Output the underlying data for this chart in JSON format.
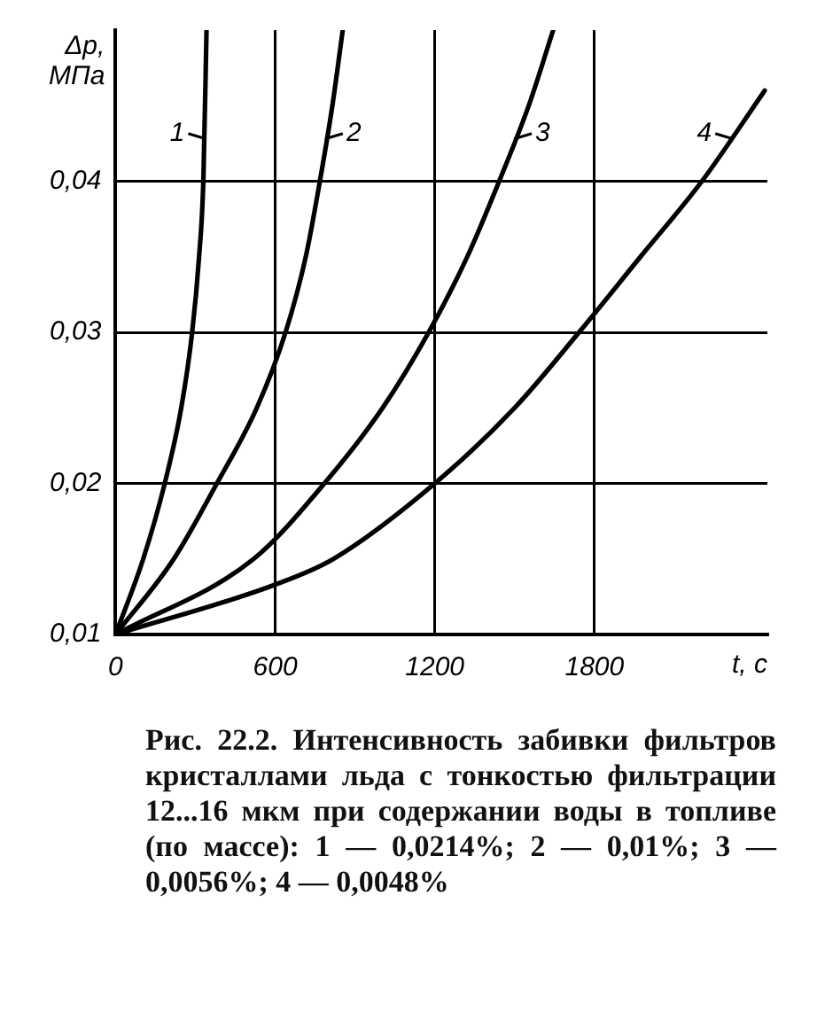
{
  "chart_data": {
    "type": "line",
    "xlabel": "t, c",
    "ylabel": "Δp, МПа",
    "xlim": [
      0,
      2450
    ],
    "xticks": [
      0,
      600,
      1200,
      1800
    ],
    "ylim": [
      0.01,
      0.05
    ],
    "yticks": [
      {
        "value": 0.01,
        "label": "0,01"
      },
      {
        "value": 0.02,
        "label": "0,02"
      },
      {
        "value": 0.03,
        "label": "0,03"
      },
      {
        "value": 0.04,
        "label": "0,04"
      }
    ],
    "grid": true,
    "legend": "top",
    "marker": "none",
    "line_style": "solid",
    "series": [
      {
        "name": "1",
        "color": "#000000",
        "x": [
          0,
          104,
          185,
          247,
          288,
          314,
          330,
          342
        ],
        "values": [
          0.01,
          0.015,
          0.02,
          0.025,
          0.03,
          0.035,
          0.04,
          0.05
        ]
      },
      {
        "name": "2",
        "color": "#000000",
        "x": [
          0,
          219,
          381,
          531,
          639,
          715,
          768,
          815,
          854
        ],
        "values": [
          0.01,
          0.015,
          0.02,
          0.025,
          0.03,
          0.035,
          0.04,
          0.045,
          0.05
        ]
      },
      {
        "name": "3",
        "color": "#000000",
        "x": [
          0,
          519,
          785,
          1004,
          1177,
          1322,
          1442,
          1553,
          1645
        ],
        "values": [
          0.01,
          0.015,
          0.02,
          0.025,
          0.03,
          0.035,
          0.04,
          0.045,
          0.05
        ]
      },
      {
        "name": "4",
        "color": "#000000",
        "x": [
          0,
          600,
          819,
          1200,
          1500,
          1742,
          1973,
          2204,
          2440
        ],
        "values": [
          0.01,
          0.0133,
          0.015,
          0.02,
          0.025,
          0.03,
          0.035,
          0.04,
          0.046
        ]
      }
    ],
    "annotations": [
      "Рис. 22.2. Интенсивность забивки фильтров кристаллами льда с тонкостью фильтрации 12...16 мкм при содержании воды в топливе (по массе): 1 — 0,0214%; 2 — 0,01%; 3 — 0,0056%; 4 — 0,0048%"
    ]
  }
}
